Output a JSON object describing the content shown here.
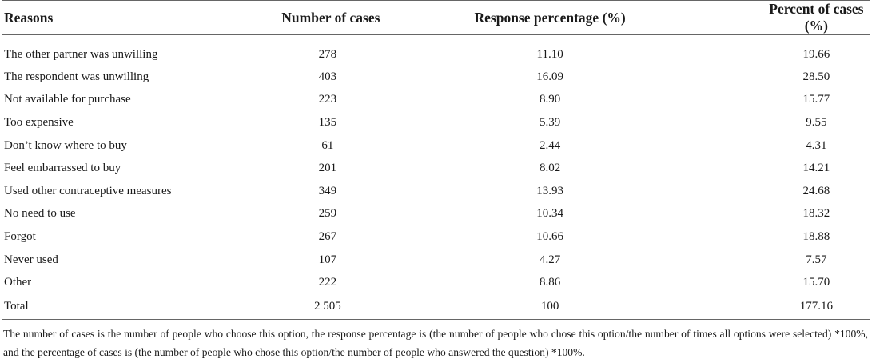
{
  "table": {
    "headers": [
      "Reasons",
      "Number of cases",
      "Response percentage (%)",
      "Percent of cases (%)"
    ],
    "rows": [
      [
        "The other partner was unwilling",
        "278",
        "11.10",
        "19.66"
      ],
      [
        "The respondent was unwilling",
        "403",
        "16.09",
        "28.50"
      ],
      [
        "Not available for purchase",
        "223",
        "8.90",
        "15.77"
      ],
      [
        "Too expensive",
        "135",
        "5.39",
        "9.55"
      ],
      [
        "Don’t know where to buy",
        "61",
        "2.44",
        "4.31"
      ],
      [
        "Feel embarrassed to buy",
        "201",
        "8.02",
        "14.21"
      ],
      [
        "Used other contraceptive measures",
        "349",
        "13.93",
        "24.68"
      ],
      [
        "No need to use",
        "259",
        "10.34",
        "18.32"
      ],
      [
        "Forgot",
        "267",
        "10.66",
        "18.88"
      ],
      [
        "Never used",
        "107",
        "4.27",
        "7.57"
      ],
      [
        "Other",
        "222",
        "8.86",
        "15.70"
      ],
      [
        "Total",
        "2 505",
        "100",
        "177.16"
      ]
    ]
  },
  "footnote": "The number of cases is the number of people who choose this option, the response percentage is (the number of people who chose this option/the number of times all options were selected) *100%, and the percentage of cases is (the number of people who chose this option/the number of people who answered the question) *100%."
}
